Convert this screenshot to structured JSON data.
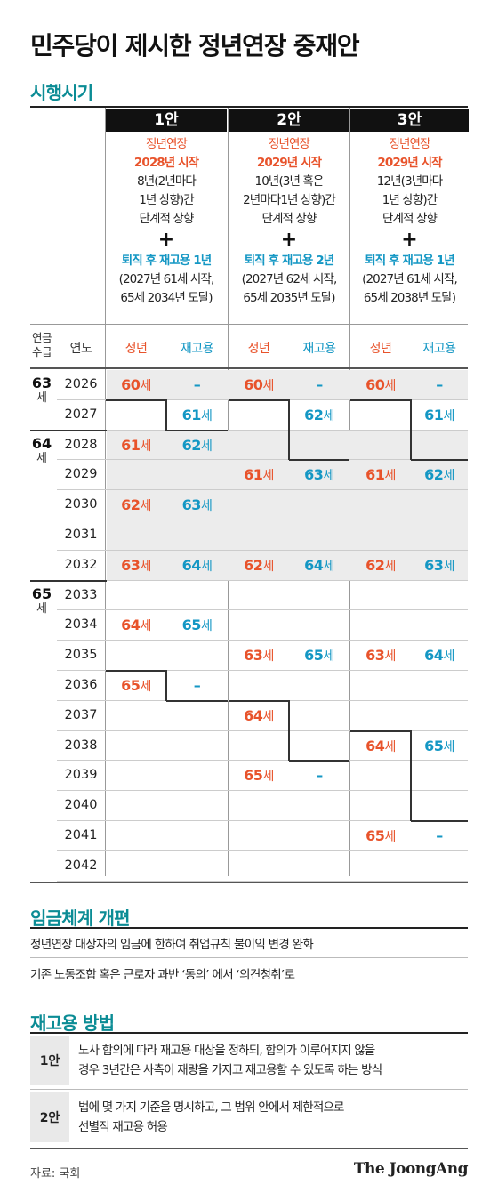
{
  "title": "민주당이 제시한 정년연장 중재안",
  "sections": {
    "schedule": "시행시기",
    "wage": "임금체계 개편",
    "rehire": "재고용 방법"
  },
  "plans": [
    {
      "label": "1안",
      "line1": "정년연장",
      "start": "2028년 시작",
      "desc1": "8년(2년마다",
      "desc2": "1년 상향)간",
      "desc3": "단계적 상향",
      "plus": "+",
      "rehire": "퇴직 후 재고용 1년",
      "note1": "(2027년 61세 시작,",
      "note2": "65세 2034년 도달)"
    },
    {
      "label": "2안",
      "line1": "정년연장",
      "start": "2029년 시작",
      "desc1": "10년(3년 혹은",
      "desc2": "2년마다1년 상향)간",
      "desc3": "단계적 상향",
      "plus": "+",
      "rehire": "퇴직 후 재고용 2년",
      "note1": "(2027년 62세 시작,",
      "note2": "65세 2035년 도달)"
    },
    {
      "label": "3안",
      "line1": "정년연장",
      "start": "2029년 시작",
      "desc1": "12년(3년마다",
      "desc2": "1년 상향)간",
      "desc3": "단계적 상향",
      "plus": "+",
      "rehire": "퇴직 후 재고용 1년",
      "note1": "(2027년 61세 시작,",
      "note2": "65세 2038년 도달)"
    }
  ],
  "table_headers": {
    "pension1": "연금",
    "pension2": "수급",
    "year": "연도",
    "retire": "정년",
    "rehire": "재고용"
  },
  "pension_groups": [
    {
      "age": "63",
      "unit": "세"
    },
    {
      "age": "64",
      "unit": "세"
    },
    {
      "age": "65",
      "unit": "세"
    }
  ],
  "unit": "세",
  "rows": [
    {
      "year": "2026",
      "c": [
        "60",
        "–",
        "60",
        "–",
        "60",
        "–"
      ]
    },
    {
      "year": "2027",
      "c": [
        "",
        "61",
        "",
        "62",
        "",
        "61"
      ]
    },
    {
      "year": "2028",
      "c": [
        "61",
        "62",
        "",
        "",
        "",
        ""
      ]
    },
    {
      "year": "2029",
      "c": [
        "",
        "",
        "61",
        "63",
        "61",
        "62"
      ]
    },
    {
      "year": "2030",
      "c": [
        "62",
        "63",
        "",
        "",
        "",
        ""
      ]
    },
    {
      "year": "2031",
      "c": [
        "",
        "",
        "",
        "",
        "",
        ""
      ]
    },
    {
      "year": "2032",
      "c": [
        "63",
        "64",
        "62",
        "64",
        "62",
        "63"
      ]
    },
    {
      "year": "2033",
      "c": [
        "",
        "",
        "",
        "",
        "",
        ""
      ]
    },
    {
      "year": "2034",
      "c": [
        "64",
        "65",
        "",
        "",
        "",
        ""
      ]
    },
    {
      "year": "2035",
      "c": [
        "",
        "",
        "63",
        "65",
        "63",
        "64"
      ]
    },
    {
      "year": "2036",
      "c": [
        "65",
        "–",
        "",
        "",
        "",
        ""
      ]
    },
    {
      "year": "2037",
      "c": [
        "",
        "",
        "64",
        "",
        "",
        ""
      ]
    },
    {
      "year": "2038",
      "c": [
        "",
        "",
        "",
        "",
        "64",
        "65"
      ]
    },
    {
      "year": "2039",
      "c": [
        "",
        "",
        "65",
        "–",
        "",
        ""
      ]
    },
    {
      "year": "2040",
      "c": [
        "",
        "",
        "",
        "",
        "",
        ""
      ]
    },
    {
      "year": "2041",
      "c": [
        "",
        "",
        "",
        "",
        "65",
        "–"
      ]
    },
    {
      "year": "2042",
      "c": [
        "",
        "",
        "",
        "",
        "",
        ""
      ]
    }
  ],
  "wage_items": [
    "정년연장 대상자의 임금에 한하여 취업규칙 불이익 변경 완화",
    "기존 노동조합 혹은 근로자 과반 ‘동의’ 에서 ‘의견청취’로"
  ],
  "rehire_plans": [
    {
      "label": "1안",
      "line1": "노사 합의에 따라 재고용 대상을 정하되, 합의가 이루어지지 않을",
      "line2": "경우 3년간은 사측이 재량을 가지고 재고용할 수 있도록 하는 방식"
    },
    {
      "label": "2안",
      "line1": "법에 몇 가지 기준을 명시하고, 그 범위 안에서 제한적으로",
      "line2": "선별적 재고용 허용"
    }
  ],
  "source": "자료: 국회",
  "brand": "The JoongAng",
  "colors": {
    "retire": "#e8532b",
    "rehire": "#1497c4",
    "section": "#0b8c95"
  }
}
